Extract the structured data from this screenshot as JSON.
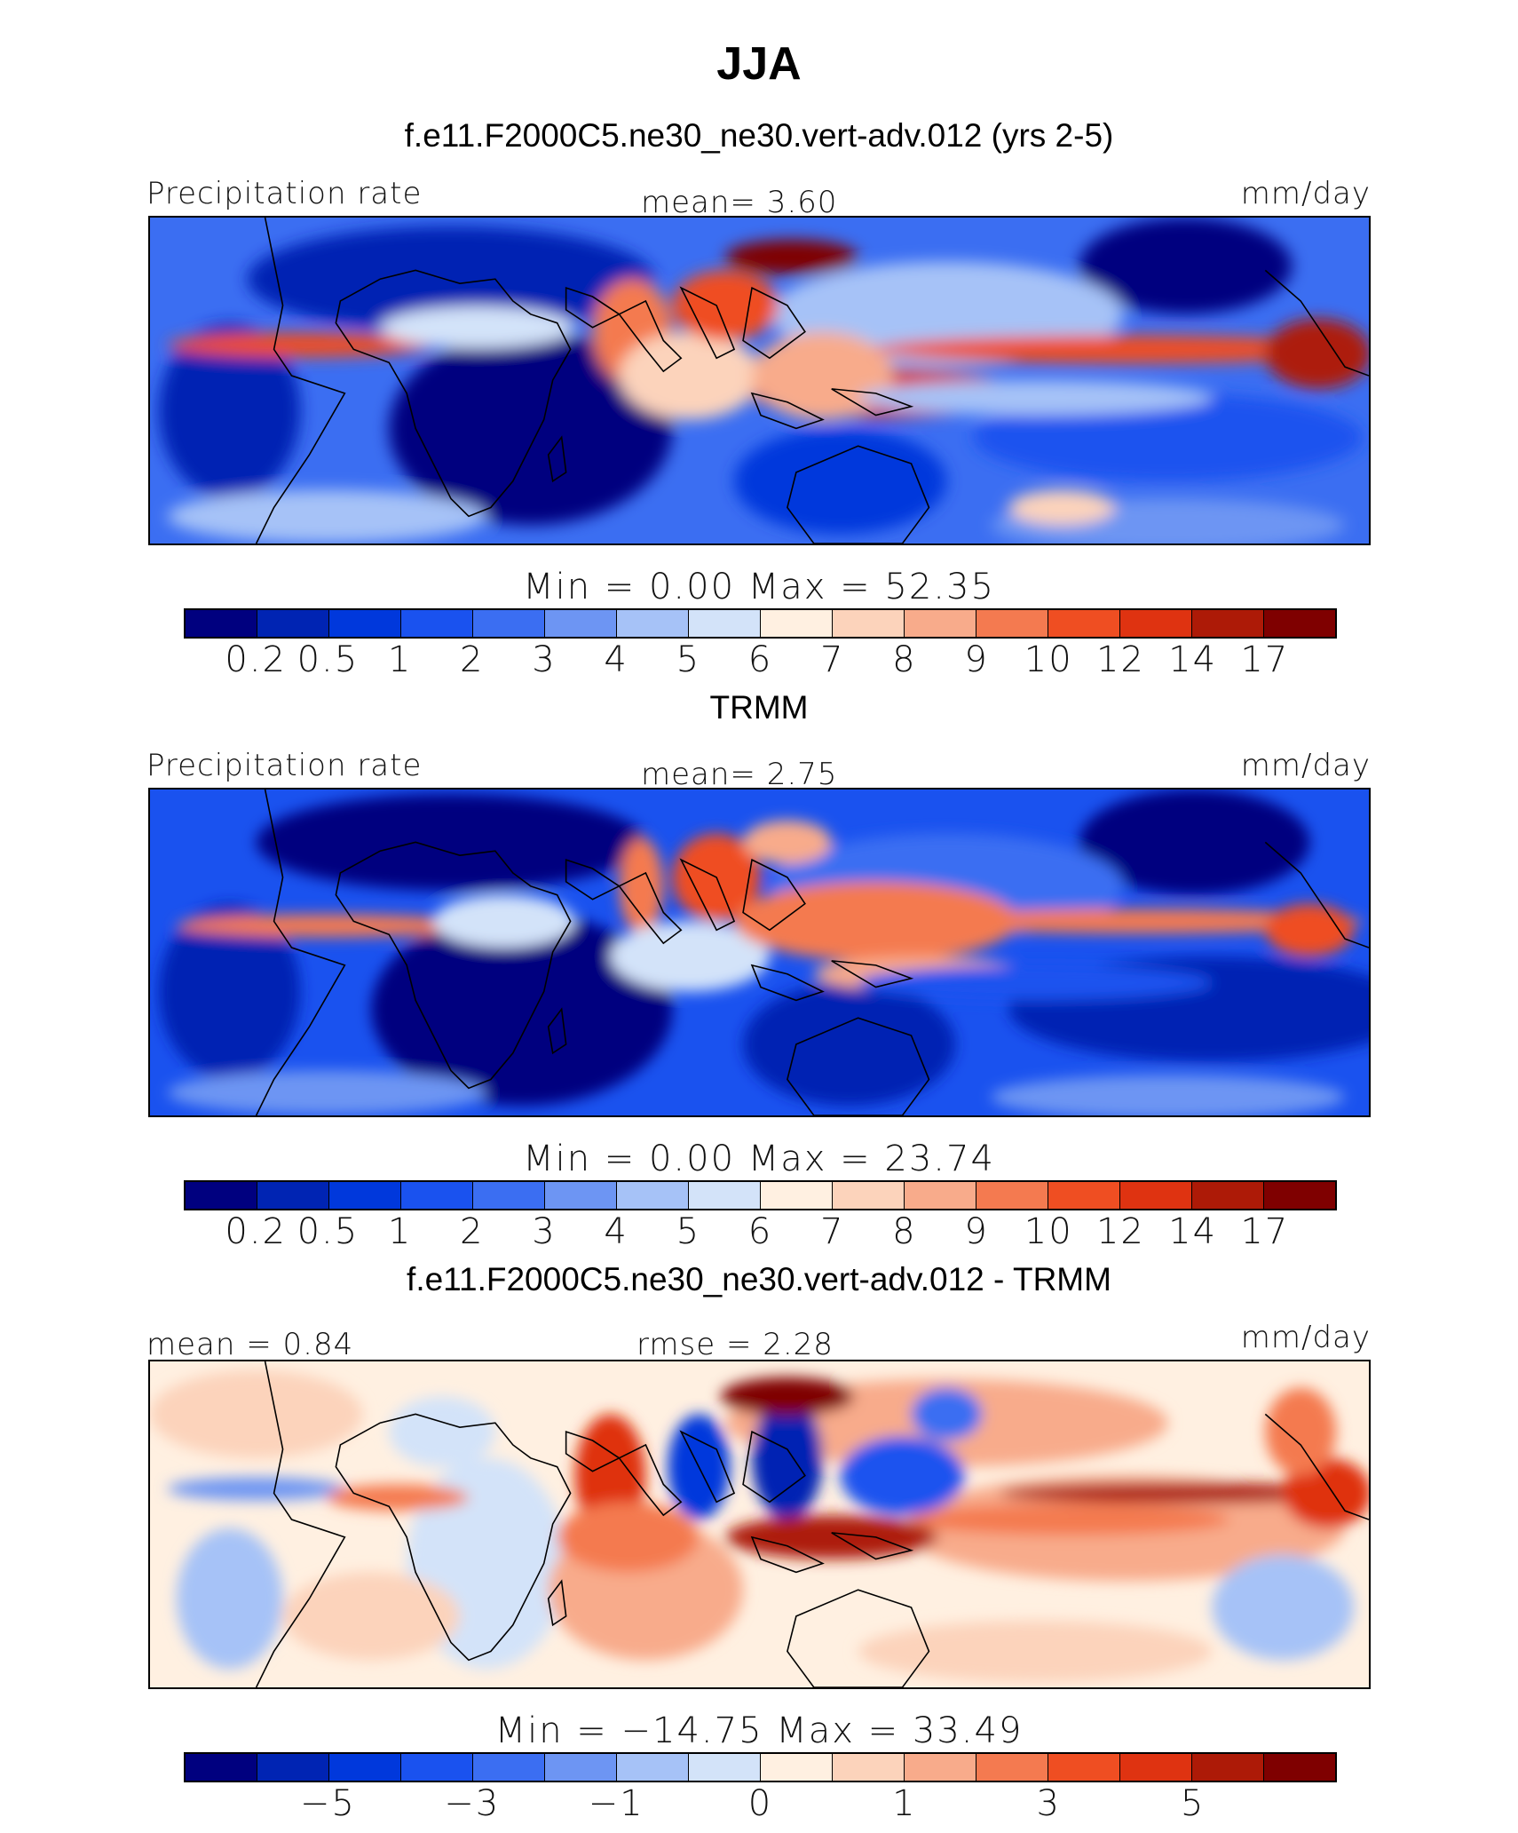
{
  "title": "JJA",
  "colors": {
    "levels": [
      "#00007f",
      "#0024b3",
      "#0038dc",
      "#1a52ef",
      "#3b6ef2",
      "#6d95f3",
      "#a6c2f7",
      "#d3e3f9",
      "#fff0e1",
      "#fcd3bb",
      "#f8ab8b",
      "#f47a50",
      "#ef4e22",
      "#df3311",
      "#ad1a07",
      "#7f0000"
    ]
  },
  "panels": [
    {
      "title": "f.e11.F2000C5.ne30_ne30.vert-adv.012 (yrs 2-5)",
      "left_label": "Precipitation rate",
      "center_label": "mean=    3.60",
      "right_label": "mm/day",
      "min_max": "Min  =    0.00  Max  =   52.35",
      "colorbar_ticks": [
        "0.2",
        "0.5",
        "1",
        "2",
        "3",
        "4",
        "5",
        "6",
        "7",
        "8",
        "9",
        "10",
        "12",
        "14",
        "17"
      ]
    },
    {
      "title": "TRMM",
      "left_label": "Precipitation rate",
      "center_label": "mean=    2.75",
      "right_label": "mm/day",
      "min_max": "Min  =    0.00  Max  =   23.74",
      "colorbar_ticks": [
        "0.2",
        "0.5",
        "1",
        "2",
        "3",
        "4",
        "5",
        "6",
        "7",
        "8",
        "9",
        "10",
        "12",
        "14",
        "17"
      ]
    },
    {
      "title": "f.e11.F2000C5.ne30_ne30.vert-adv.012 - TRMM",
      "left_label": "mean  =    0.84",
      "center_label": "rmse  =    2.28",
      "right_label": "mm/day",
      "min_max": "Min  = −14.75  Max  =   33.49",
      "colorbar_ticks": [
        "−5",
        "−3",
        "−1",
        "0",
        "1",
        "3",
        "5"
      ]
    }
  ]
}
